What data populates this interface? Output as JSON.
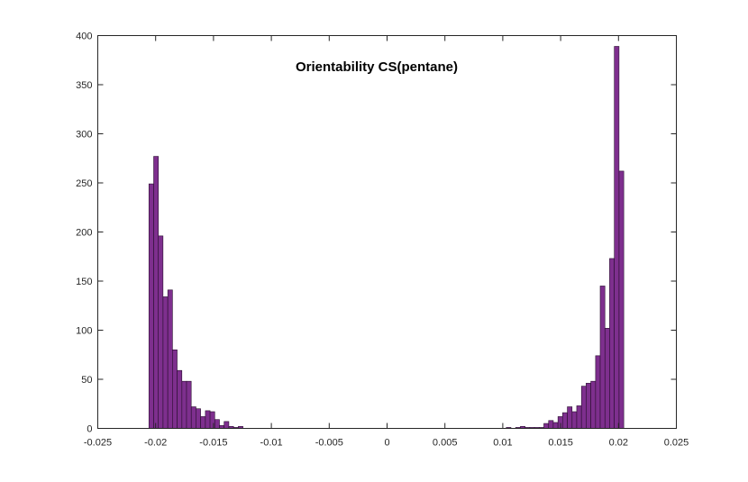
{
  "chart_data": {
    "type": "bar",
    "subtype": "histogram",
    "title": "Orientability CS(pentane)",
    "xlabel": "",
    "ylabel": "",
    "xlim": [
      -0.025,
      0.025
    ],
    "ylim": [
      0,
      400
    ],
    "xticks": [
      -0.025,
      -0.02,
      -0.015,
      -0.01,
      -0.005,
      0,
      0.005,
      0.01,
      0.015,
      0.02,
      0.025
    ],
    "xtick_labels": [
      "-0.025",
      "-0.02",
      "-0.015",
      "-0.01",
      "-0.005",
      "0",
      "0.005",
      "0.01",
      "0.015",
      "0.02",
      "0.025"
    ],
    "yticks": [
      0,
      50,
      100,
      150,
      200,
      250,
      300,
      350,
      400
    ],
    "ytick_labels": [
      "0",
      "50",
      "100",
      "150",
      "200",
      "250",
      "300",
      "350",
      "400"
    ],
    "bin_width": 0.000406,
    "bar_color": "#7e2f8e",
    "edge_color": "#2a0f30",
    "grid": false,
    "bins": [
      {
        "left": -0.02058,
        "count": 249
      },
      {
        "left": -0.02017,
        "count": 277
      },
      {
        "left": -0.01977,
        "count": 196
      },
      {
        "left": -0.01936,
        "count": 134
      },
      {
        "left": -0.01895,
        "count": 141
      },
      {
        "left": -0.01855,
        "count": 80
      },
      {
        "left": -0.01814,
        "count": 59
      },
      {
        "left": -0.01773,
        "count": 48
      },
      {
        "left": -0.01733,
        "count": 48
      },
      {
        "left": -0.01692,
        "count": 22
      },
      {
        "left": -0.01652,
        "count": 20
      },
      {
        "left": -0.01611,
        "count": 12
      },
      {
        "left": -0.0157,
        "count": 18
      },
      {
        "left": -0.0153,
        "count": 17
      },
      {
        "left": -0.01489,
        "count": 9
      },
      {
        "left": -0.01449,
        "count": 3
      },
      {
        "left": -0.01408,
        "count": 7
      },
      {
        "left": -0.01367,
        "count": 2
      },
      {
        "left": -0.01327,
        "count": 1
      },
      {
        "left": -0.01286,
        "count": 2
      },
      {
        "left": 0.0103,
        "count": 1
      },
      {
        "left": 0.01111,
        "count": 1
      },
      {
        "left": 0.01152,
        "count": 2
      },
      {
        "left": 0.01193,
        "count": 1
      },
      {
        "left": 0.01233,
        "count": 1
      },
      {
        "left": 0.01274,
        "count": 1
      },
      {
        "left": 0.01314,
        "count": 1
      },
      {
        "left": 0.01355,
        "count": 5
      },
      {
        "left": 0.01396,
        "count": 8
      },
      {
        "left": 0.01436,
        "count": 6
      },
      {
        "left": 0.01477,
        "count": 12
      },
      {
        "left": 0.01517,
        "count": 16
      },
      {
        "left": 0.01558,
        "count": 22
      },
      {
        "left": 0.01599,
        "count": 17
      },
      {
        "left": 0.01639,
        "count": 23
      },
      {
        "left": 0.0168,
        "count": 43
      },
      {
        "left": 0.0172,
        "count": 46
      },
      {
        "left": 0.01761,
        "count": 48
      },
      {
        "left": 0.01802,
        "count": 74
      },
      {
        "left": 0.01842,
        "count": 145
      },
      {
        "left": 0.01883,
        "count": 102
      },
      {
        "left": 0.01923,
        "count": 173
      },
      {
        "left": 0.01964,
        "count": 389
      },
      {
        "left": 0.02005,
        "count": 262
      }
    ]
  }
}
